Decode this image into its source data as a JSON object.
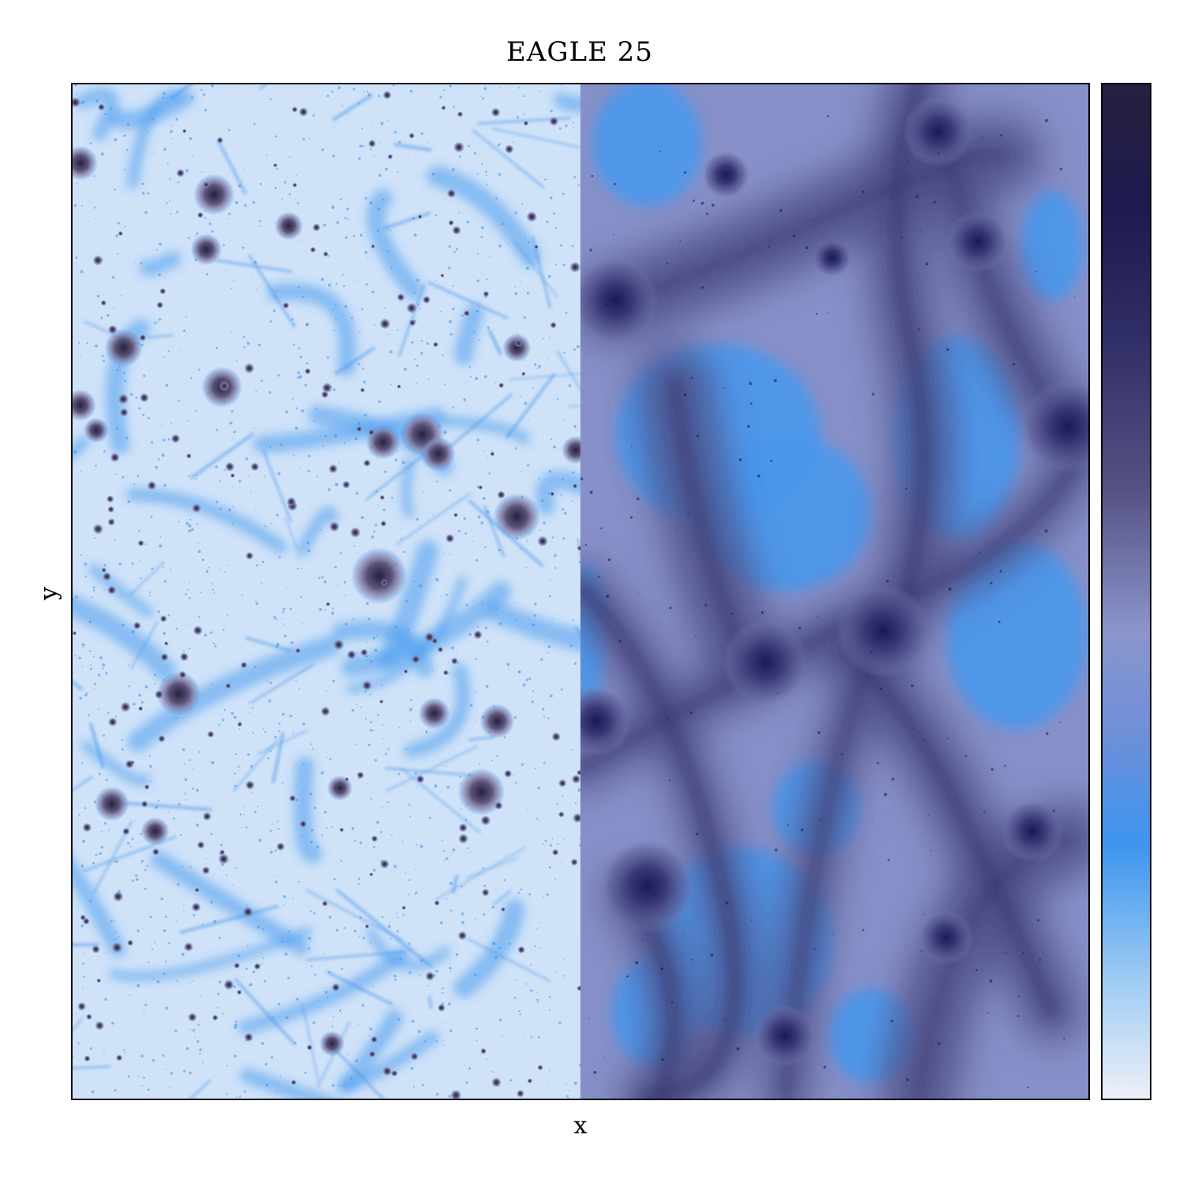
{
  "figure": {
    "title": "EAGLE 25",
    "xlabel": "x",
    "ylabel": "y"
  },
  "colors": {
    "colormap": [
      "#eef0f8",
      "#9ccaf3",
      "#3d95ee",
      "#8b95cc",
      "#3e3a6f",
      "#1d1a4f",
      "#26213f"
    ],
    "left_background": "#cfe2f8",
    "left_filament": "#3d95ee",
    "left_halo": "#3a3560",
    "right_void": "#4d98ea",
    "right_filament": "#7a7fb4",
    "right_halo": "#1f1d5a"
  }
}
